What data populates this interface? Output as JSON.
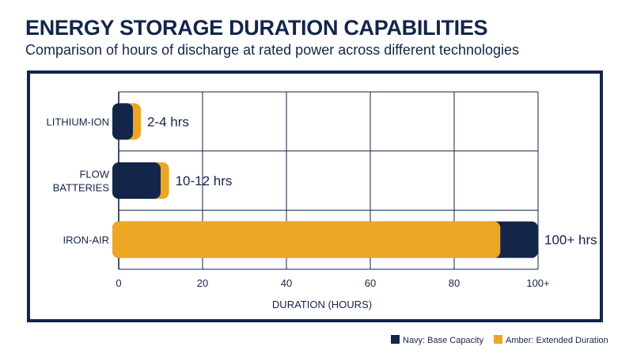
{
  "title": "ENERGY STORAGE DURATION CAPABILITIES",
  "subtitle": "Comparison of hours of discharge at rated power across different technologies",
  "colors": {
    "navy": "#14254a",
    "amber": "#eda623",
    "grid": "#14254a",
    "text": "#14254a"
  },
  "legend": {
    "navy_label": "Navy: Base Capacity",
    "amber_label": "Amber: Extended Duration"
  },
  "chart_data": {
    "type": "bar",
    "orientation": "horizontal",
    "xlabel": "DURATION (HOURS)",
    "ylabel": "",
    "xlim": [
      0,
      100
    ],
    "x_ticks": [
      "0",
      "20",
      "40",
      "60",
      "80",
      "100+"
    ],
    "grid": true,
    "legend_position": "bottom-right",
    "categories": [
      {
        "label_lines": [
          "LITHIUM-ION"
        ],
        "base": 2,
        "extended": 4,
        "label": "2-4 hrs",
        "front": "navy"
      },
      {
        "label_lines": [
          "FLOW",
          "BATTERIES"
        ],
        "base": 10,
        "extended": 12,
        "label": "10-12 hrs",
        "front": "navy"
      },
      {
        "label_lines": [
          "IRON-AIR"
        ],
        "base": 100,
        "extended": 91,
        "label": "100+ hrs",
        "front": "amber"
      }
    ]
  }
}
